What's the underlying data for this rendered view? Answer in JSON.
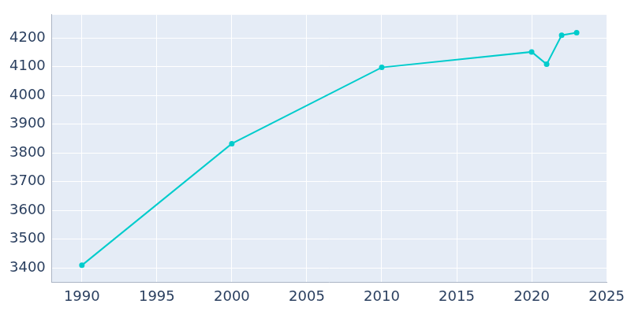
{
  "chart_data": {
    "type": "line",
    "x": [
      1990,
      2000,
      2010,
      2020,
      2021,
      2022,
      2023
    ],
    "values": [
      3409,
      3832,
      4097,
      4151,
      4108,
      4209,
      4218
    ],
    "color": "#00cccc",
    "marker": "circle",
    "xlim": [
      1988,
      2025
    ],
    "xticks": [
      1990,
      1995,
      2000,
      2005,
      2010,
      2015,
      2020,
      2025
    ],
    "ylim": [
      3350,
      4280
    ],
    "yticks": [
      3400,
      3500,
      3600,
      3700,
      3800,
      3900,
      4000,
      4100,
      4200
    ],
    "grid": true
  }
}
